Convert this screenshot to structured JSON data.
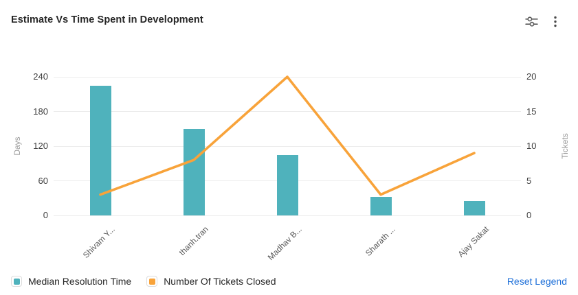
{
  "header": {
    "title": "Estimate Vs Time Spent in Development",
    "settings_icon": "chart-settings-sliders",
    "menu_icon": "more-options-kebab"
  },
  "chart_data": {
    "type": "combo-bar-line",
    "categories": [
      "Shivam Y...",
      "thanh.tran",
      "Madhav B...",
      "Sharath ...",
      "Ajay Sakat"
    ],
    "series": [
      {
        "name": "Median Resolution Time",
        "type": "bar",
        "y_axis": "left",
        "color": "#4FB2BC",
        "values": [
          224,
          150,
          105,
          32,
          25
        ]
      },
      {
        "name": "Number Of Tickets Closed",
        "type": "line",
        "y_axis": "right",
        "color": "#F8A33A",
        "values": [
          3,
          8,
          20,
          3,
          9
        ]
      }
    ],
    "left_axis": {
      "title": "Days",
      "min": 0,
      "max": 240,
      "ticks": [
        0,
        60,
        120,
        180,
        240
      ]
    },
    "right_axis": {
      "title": "Tickets",
      "min": 0,
      "max": 20,
      "ticks": [
        0,
        5,
        10,
        15,
        20
      ]
    },
    "grid": "horizontal",
    "legend_position": "bottom-left"
  },
  "legend": {
    "reset_label": "Reset Legend"
  },
  "colors": {
    "bar": "#4FB2BC",
    "line": "#F8A33A",
    "gridline": "#ECECEC",
    "tick_label": "#404040",
    "axis_title": "#9B9B9B",
    "x_label": "#595959",
    "link": "#1D6FD8"
  }
}
